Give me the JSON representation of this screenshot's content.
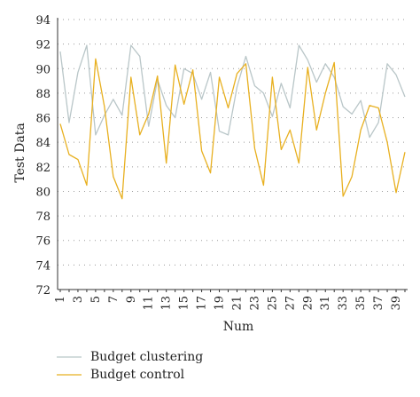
{
  "chart_data": {
    "type": "line",
    "title": "",
    "xlabel": "Num",
    "ylabel": "Test Data",
    "ylim": [
      72,
      94
    ],
    "yticks": [
      "72",
      "74",
      "76",
      "78",
      "80",
      "82",
      "84",
      "86",
      "88",
      "90",
      "92",
      "94"
    ],
    "xticks": [
      "1",
      "3",
      "5",
      "7",
      "9",
      "11",
      "13",
      "15",
      "17",
      "19",
      "21",
      "23",
      "25",
      "27",
      "29",
      "31",
      "33",
      "35",
      "37",
      "39"
    ],
    "grid": "horizontal-dotted",
    "legend_position": "bottom-left",
    "x": [
      1,
      2,
      3,
      4,
      5,
      6,
      7,
      8,
      9,
      10,
      11,
      12,
      13,
      14,
      15,
      16,
      17,
      18,
      19,
      20,
      21,
      22,
      23,
      24,
      25,
      26,
      27,
      28,
      29,
      30,
      31,
      32,
      33,
      34,
      35,
      36,
      37,
      38,
      39,
      40
    ],
    "series": [
      {
        "name": "Budget clustering",
        "color": "#b9c6c8",
        "values": [
          91.4,
          85.6,
          89.7,
          91.9,
          84.6,
          86.2,
          87.5,
          86.2,
          91.9,
          91.0,
          85.3,
          89.1,
          87.0,
          86.0,
          90.0,
          89.6,
          87.5,
          89.7,
          84.9,
          84.6,
          88.5,
          91.0,
          88.6,
          88.0,
          86.1,
          88.8,
          86.8,
          91.9,
          90.7,
          88.9,
          90.4,
          89.3,
          86.9,
          86.3,
          87.4,
          84.4,
          85.6,
          90.4,
          89.5,
          87.7
        ]
      },
      {
        "name": "Budget control",
        "color": "#e8b020",
        "values": [
          85.5,
          83.0,
          82.6,
          80.5,
          90.8,
          86.9,
          81.2,
          79.4,
          89.3,
          84.6,
          86.3,
          89.4,
          82.3,
          90.3,
          87.1,
          89.9,
          83.3,
          81.5,
          89.3,
          86.8,
          89.6,
          90.4,
          83.5,
          80.5,
          89.3,
          83.4,
          85.0,
          82.3,
          90.1,
          85.0,
          88.0,
          90.5,
          79.6,
          81.2,
          85.0,
          87.0,
          86.8,
          84.0,
          79.9,
          83.2
        ]
      }
    ]
  }
}
